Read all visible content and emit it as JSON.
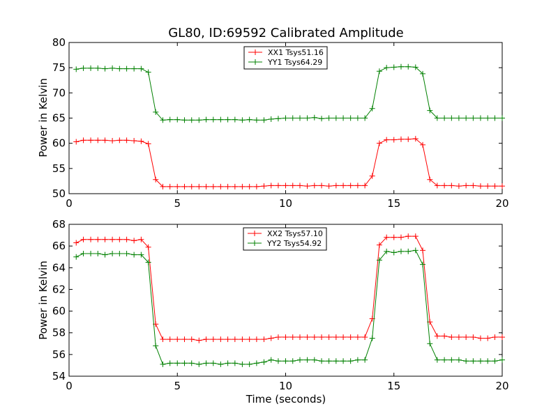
{
  "chart_data": [
    {
      "type": "line",
      "title": "GL80, ID:69592 Calibrated Amplitude",
      "xlabel": "",
      "ylabel": "Power in Kelvin",
      "xlim": [
        0,
        20
      ],
      "ylim": [
        50,
        80
      ],
      "xticks": [
        0,
        5,
        10,
        15,
        20
      ],
      "yticks": [
        50,
        55,
        60,
        65,
        70,
        75,
        80
      ],
      "grid": false,
      "legend_position": "top-center",
      "x": [
        0.33,
        0.66,
        1.0,
        1.33,
        1.66,
        2.0,
        2.33,
        2.66,
        3.0,
        3.33,
        3.66,
        4.0,
        4.33,
        4.66,
        5.0,
        5.33,
        5.66,
        6.0,
        6.33,
        6.66,
        7.0,
        7.33,
        7.66,
        8.0,
        8.33,
        8.66,
        9.0,
        9.33,
        9.66,
        10.0,
        10.33,
        10.66,
        11.0,
        11.33,
        11.66,
        12.0,
        12.33,
        12.66,
        13.0,
        13.33,
        13.66,
        14.0,
        14.33,
        14.66,
        15.0,
        15.33,
        15.66,
        16.0,
        16.33,
        16.66,
        17.0,
        17.33,
        17.66,
        18.0,
        18.33,
        18.66,
        19.0,
        19.33,
        19.66,
        20.0
      ],
      "series": [
        {
          "name": "XX1 Tsys51.16",
          "color": "#ff0000",
          "values": [
            60.3,
            60.6,
            60.6,
            60.6,
            60.6,
            60.5,
            60.6,
            60.6,
            60.5,
            60.4,
            59.9,
            52.8,
            51.4,
            51.4,
            51.4,
            51.4,
            51.4,
            51.4,
            51.4,
            51.4,
            51.4,
            51.4,
            51.4,
            51.4,
            51.4,
            51.4,
            51.5,
            51.6,
            51.6,
            51.6,
            51.6,
            51.6,
            51.5,
            51.6,
            51.6,
            51.5,
            51.6,
            51.6,
            51.6,
            51.6,
            51.6,
            53.5,
            60.0,
            60.7,
            60.7,
            60.8,
            60.8,
            60.9,
            59.7,
            52.8,
            51.6,
            51.6,
            51.6,
            51.5,
            51.6,
            51.6,
            51.5,
            51.5,
            51.5,
            51.5
          ]
        },
        {
          "name": "YY1 Tsys64.29",
          "color": "#008000",
          "values": [
            74.7,
            74.9,
            74.9,
            74.9,
            74.8,
            74.9,
            74.8,
            74.8,
            74.8,
            74.8,
            74.1,
            66.2,
            64.6,
            64.7,
            64.7,
            64.6,
            64.6,
            64.6,
            64.7,
            64.7,
            64.7,
            64.7,
            64.7,
            64.6,
            64.7,
            64.6,
            64.6,
            64.8,
            64.9,
            65.0,
            65.0,
            65.0,
            65.0,
            65.1,
            64.9,
            65.0,
            65.0,
            65.0,
            65.0,
            65.0,
            65.0,
            66.9,
            74.3,
            75.0,
            75.1,
            75.2,
            75.2,
            75.1,
            73.8,
            66.5,
            65.0,
            65.0,
            65.0,
            65.0,
            65.0,
            65.0,
            65.0,
            65.0,
            65.0,
            65.0
          ]
        }
      ]
    },
    {
      "type": "line",
      "title": "",
      "xlabel": "Time (seconds)",
      "ylabel": "Power in Kelvin",
      "xlim": [
        0,
        20
      ],
      "ylim": [
        54,
        68
      ],
      "xticks": [
        0,
        5,
        10,
        15,
        20
      ],
      "yticks": [
        54,
        56,
        58,
        60,
        62,
        64,
        66,
        68
      ],
      "grid": false,
      "legend_position": "top-center",
      "x": [
        0.33,
        0.66,
        1.0,
        1.33,
        1.66,
        2.0,
        2.33,
        2.66,
        3.0,
        3.33,
        3.66,
        4.0,
        4.33,
        4.66,
        5.0,
        5.33,
        5.66,
        6.0,
        6.33,
        6.66,
        7.0,
        7.33,
        7.66,
        8.0,
        8.33,
        8.66,
        9.0,
        9.33,
        9.66,
        10.0,
        10.33,
        10.66,
        11.0,
        11.33,
        11.66,
        12.0,
        12.33,
        12.66,
        13.0,
        13.33,
        13.66,
        14.0,
        14.33,
        14.66,
        15.0,
        15.33,
        15.66,
        16.0,
        16.33,
        16.66,
        17.0,
        17.33,
        17.66,
        18.0,
        18.33,
        18.66,
        19.0,
        19.33,
        19.66,
        20.0
      ],
      "series": [
        {
          "name": "XX2 Tsys57.10",
          "color": "#ff0000",
          "values": [
            66.3,
            66.6,
            66.6,
            66.6,
            66.6,
            66.6,
            66.6,
            66.6,
            66.5,
            66.6,
            65.9,
            58.8,
            57.4,
            57.4,
            57.4,
            57.4,
            57.4,
            57.3,
            57.4,
            57.4,
            57.4,
            57.4,
            57.4,
            57.4,
            57.4,
            57.4,
            57.4,
            57.5,
            57.6,
            57.6,
            57.6,
            57.6,
            57.6,
            57.6,
            57.6,
            57.6,
            57.6,
            57.6,
            57.6,
            57.6,
            57.6,
            59.3,
            66.1,
            66.8,
            66.8,
            66.8,
            66.9,
            66.9,
            65.6,
            59.0,
            57.7,
            57.7,
            57.6,
            57.6,
            57.6,
            57.6,
            57.5,
            57.5,
            57.6,
            57.6
          ]
        },
        {
          "name": "YY2 Tsys54.92",
          "color": "#008000",
          "values": [
            65.0,
            65.3,
            65.3,
            65.3,
            65.2,
            65.3,
            65.3,
            65.3,
            65.2,
            65.2,
            64.5,
            56.8,
            55.1,
            55.2,
            55.2,
            55.2,
            55.2,
            55.1,
            55.2,
            55.2,
            55.1,
            55.2,
            55.2,
            55.1,
            55.1,
            55.2,
            55.3,
            55.5,
            55.4,
            55.4,
            55.4,
            55.5,
            55.5,
            55.5,
            55.4,
            55.4,
            55.4,
            55.4,
            55.4,
            55.5,
            55.5,
            57.5,
            64.7,
            65.5,
            65.4,
            65.5,
            65.5,
            65.6,
            64.3,
            57.0,
            55.5,
            55.5,
            55.5,
            55.5,
            55.4,
            55.4,
            55.4,
            55.4,
            55.4,
            55.5
          ]
        }
      ]
    }
  ]
}
